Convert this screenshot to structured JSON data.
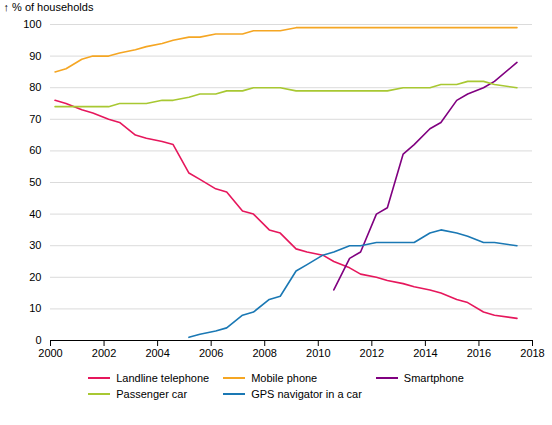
{
  "chart_data": {
    "type": "line",
    "ylabel": "% of households",
    "xlim": [
      2000,
      2018
    ],
    "ylim": [
      0,
      100
    ],
    "xticks": [
      2000,
      2002,
      2004,
      2006,
      2008,
      2010,
      2012,
      2014,
      2016,
      2018
    ],
    "yticks": [
      0,
      10,
      20,
      30,
      40,
      50,
      60,
      70,
      80,
      90,
      100
    ],
    "grid": true,
    "legend": "bottom",
    "series": [
      {
        "name": "Landline telephone",
        "color": "#e6175c",
        "x": [
          2000.17,
          2000.58,
          2001.17,
          2001.58,
          2002.17,
          2002.58,
          2003.17,
          2003.58,
          2004.17,
          2004.58,
          2005.17,
          2005.58,
          2006.17,
          2006.58,
          2007.17,
          2007.58,
          2008.17,
          2008.58,
          2009.17,
          2009.58,
          2010.17,
          2010.58,
          2011.17,
          2011.58,
          2012.17,
          2012.58,
          2013.17,
          2013.58,
          2014.17,
          2014.58,
          2015.17,
          2015.58,
          2016.17,
          2016.58,
          2017.42
        ],
        "values": [
          76,
          75,
          73,
          72,
          70,
          69,
          65,
          64,
          63,
          62,
          53,
          51,
          48,
          47,
          41,
          40,
          35,
          34,
          29,
          28,
          27,
          25,
          23,
          21,
          20,
          19,
          18,
          17,
          16,
          15,
          13,
          12,
          9,
          8,
          7
        ]
      },
      {
        "name": "Mobile phone",
        "color": "#f5a623",
        "x": [
          2000.17,
          2000.58,
          2001.17,
          2001.58,
          2002.17,
          2002.58,
          2003.17,
          2003.58,
          2004.17,
          2004.58,
          2005.17,
          2005.58,
          2006.17,
          2006.58,
          2007.17,
          2007.58,
          2008.17,
          2008.58,
          2009.17,
          2009.58,
          2010.17,
          2010.58,
          2011.17,
          2011.58,
          2012.17,
          2012.58,
          2013.17,
          2013.58,
          2014.17,
          2014.58,
          2015.17,
          2015.58,
          2016.17,
          2016.58,
          2017.42
        ],
        "values": [
          85,
          86,
          89,
          90,
          90,
          91,
          92,
          93,
          94,
          95,
          96,
          96,
          97,
          97,
          97,
          98,
          98,
          98,
          99,
          99,
          99,
          99,
          99,
          99,
          99,
          99,
          99,
          99,
          99,
          99,
          99,
          99,
          99,
          99,
          99
        ]
      },
      {
        "name": "Smartphone",
        "color": "#800080",
        "x": [
          2010.58,
          2011.17,
          2011.58,
          2012.17,
          2012.58,
          2013.17,
          2013.58,
          2014.17,
          2014.58,
          2015.17,
          2015.58,
          2016.17,
          2016.58,
          2017.42
        ],
        "values": [
          16,
          26,
          28,
          40,
          42,
          59,
          62,
          67,
          69,
          76,
          78,
          80,
          82,
          88
        ]
      },
      {
        "name": "Passenger car",
        "color": "#a8c832",
        "x": [
          2000.17,
          2000.58,
          2001.17,
          2001.58,
          2002.17,
          2002.58,
          2003.17,
          2003.58,
          2004.17,
          2004.58,
          2005.17,
          2005.58,
          2006.17,
          2006.58,
          2007.17,
          2007.58,
          2008.17,
          2008.58,
          2009.17,
          2009.58,
          2010.17,
          2010.58,
          2011.17,
          2011.58,
          2012.17,
          2012.58,
          2013.17,
          2013.58,
          2014.17,
          2014.58,
          2015.17,
          2015.58,
          2016.17,
          2016.58,
          2017.42
        ],
        "values": [
          74,
          74,
          74,
          74,
          74,
          75,
          75,
          75,
          76,
          76,
          77,
          78,
          78,
          79,
          79,
          80,
          80,
          80,
          79,
          79,
          79,
          79,
          79,
          79,
          79,
          79,
          80,
          80,
          80,
          81,
          81,
          82,
          82,
          81,
          80
        ]
      },
      {
        "name": "GPS navigator in a car",
        "color": "#1a78b4",
        "x": [
          2005.17,
          2005.58,
          2006.17,
          2006.58,
          2007.17,
          2007.58,
          2008.17,
          2008.58,
          2009.17,
          2009.58,
          2010.17,
          2010.58,
          2011.17,
          2011.58,
          2012.17,
          2012.58,
          2013.17,
          2013.58,
          2014.17,
          2014.58,
          2015.17,
          2015.58,
          2016.17,
          2016.58,
          2017.42
        ],
        "values": [
          1,
          2,
          3,
          4,
          8,
          9,
          13,
          14,
          22,
          24,
          27,
          28,
          30,
          30,
          31,
          31,
          31,
          31,
          34,
          35,
          34,
          33,
          31,
          31,
          30
        ]
      }
    ]
  }
}
